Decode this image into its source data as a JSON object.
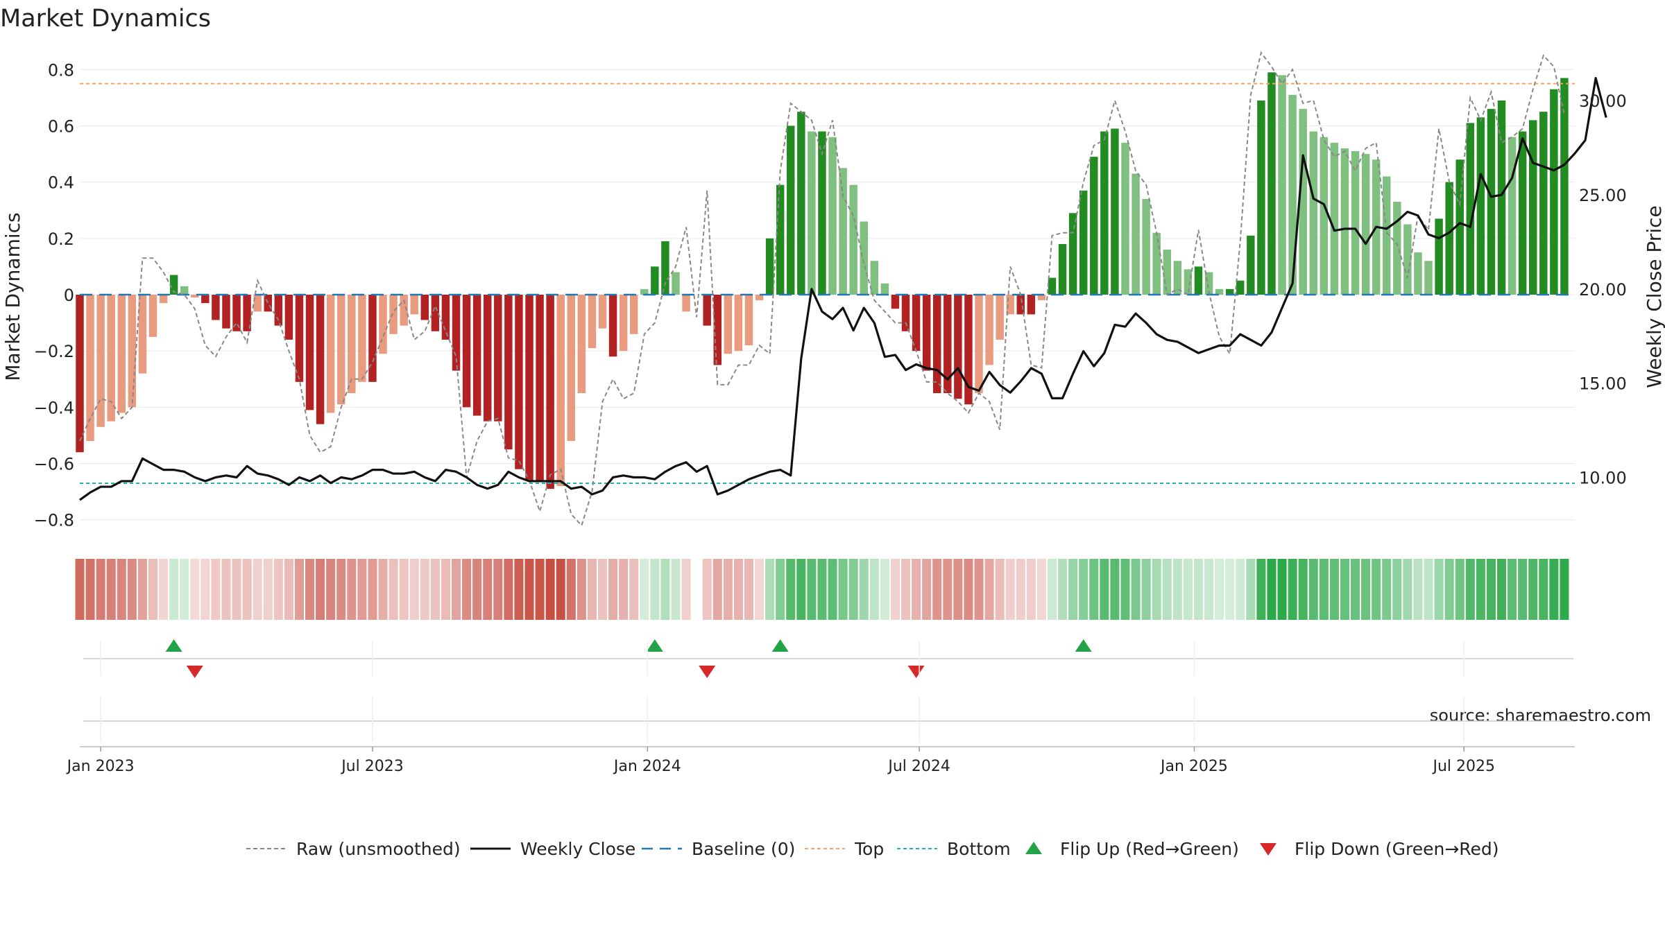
{
  "chart_data": {
    "type": "bar",
    "title": "Market Dynamics",
    "ylabel": "Market Dynamics",
    "y2label": "Weekly Close Price",
    "source": "source: sharemaestro.com",
    "ylim": [
      -0.85,
      0.85
    ],
    "y2lim": [
      7.0,
      32.4
    ],
    "y_ticks": [
      {
        "v": 0.8,
        "label": "0.8"
      },
      {
        "v": 0.6,
        "label": "0.6"
      },
      {
        "v": 0.4,
        "label": "0.4"
      },
      {
        "v": 0.2,
        "label": "0.2"
      },
      {
        "v": 0,
        "label": "0"
      },
      {
        "v": -0.2,
        "label": "−0.2"
      },
      {
        "v": -0.4,
        "label": "−0.4"
      },
      {
        "v": -0.6,
        "label": "−0.6"
      },
      {
        "v": -0.8,
        "label": "−0.8"
      }
    ],
    "y2_ticks": [
      {
        "v": 30,
        "label": "30.00"
      },
      {
        "v": 25,
        "label": "25.00"
      },
      {
        "v": 20,
        "label": "20.00"
      },
      {
        "v": 15,
        "label": "15.00"
      },
      {
        "v": 10,
        "label": "10.00"
      }
    ],
    "x_ticks": [
      {
        "week": 0,
        "label": "Jan 2023"
      },
      {
        "week": 26,
        "label": "Jul 2023"
      },
      {
        "week": 52.3,
        "label": "Jan 2024"
      },
      {
        "week": 78.3,
        "label": "Jul 2024"
      },
      {
        "week": 104.6,
        "label": "Jan 2025"
      },
      {
        "week": 130.4,
        "label": "Jul 2025"
      }
    ],
    "x_range": [
      -2,
      141
    ],
    "top_line": 0.75,
    "bottom_line": -0.67,
    "start_week": -2,
    "series": [
      {
        "name": "Market Dynamics (smoothed)",
        "values": [
          -0.56,
          -0.52,
          -0.47,
          -0.45,
          -0.42,
          -0.4,
          -0.28,
          -0.15,
          -0.03,
          0.07,
          0.03,
          -0.01,
          -0.03,
          -0.09,
          -0.12,
          -0.13,
          -0.13,
          -0.06,
          -0.06,
          -0.11,
          -0.16,
          -0.31,
          -0.41,
          -0.46,
          -0.42,
          -0.39,
          -0.35,
          -0.31,
          -0.31,
          -0.21,
          -0.14,
          -0.11,
          -0.07,
          -0.09,
          -0.13,
          -0.16,
          -0.27,
          -0.4,
          -0.43,
          -0.45,
          -0.45,
          -0.55,
          -0.62,
          -0.66,
          -0.66,
          -0.69,
          -0.68,
          -0.52,
          -0.35,
          -0.19,
          -0.12,
          -0.22,
          -0.2,
          -0.14,
          0.02,
          0.1,
          0.19,
          0.08,
          -0.06,
          null,
          -0.11,
          -0.25,
          -0.21,
          -0.2,
          -0.18,
          -0.02,
          0.2,
          0.39,
          0.6,
          0.65,
          0.58,
          0.58,
          0.56,
          0.45,
          0.39,
          0.26,
          0.12,
          0.04,
          -0.05,
          -0.13,
          -0.2,
          -0.27,
          -0.35,
          -0.35,
          -0.37,
          -0.39,
          -0.35,
          -0.25,
          -0.16,
          -0.07,
          -0.07,
          -0.07,
          -0.02,
          0.06,
          0.18,
          0.29,
          0.37,
          0.49,
          0.58,
          0.59,
          0.54,
          0.43,
          0.34,
          0.22,
          0.16,
          0.12,
          0.09,
          0.1,
          0.08,
          0.02,
          0.02,
          0.05,
          0.21,
          0.69,
          0.79,
          0.78,
          0.71,
          0.66,
          0.58,
          0.56,
          0.54,
          0.52,
          0.51,
          0.5,
          0.48,
          0.42,
          0.33,
          0.25,
          0.15,
          0.12,
          0.27,
          0.4,
          0.48,
          0.61,
          0.63,
          0.66,
          0.69,
          0.56,
          0.58,
          0.62,
          0.65,
          0.73,
          0.77
        ]
      },
      {
        "name": "Raw (unsmoothed)",
        "values": [
          -0.52,
          -0.44,
          -0.37,
          -0.38,
          -0.44,
          -0.4,
          0.13,
          0.13,
          0.08,
          0.01,
          0.0,
          -0.05,
          -0.18,
          -0.22,
          -0.15,
          -0.1,
          -0.17,
          0.05,
          -0.03,
          -0.09,
          -0.2,
          -0.3,
          -0.5,
          -0.56,
          -0.54,
          -0.4,
          -0.3,
          -0.3,
          -0.24,
          -0.15,
          -0.06,
          -0.02,
          -0.16,
          -0.13,
          -0.04,
          -0.13,
          -0.22,
          -0.65,
          -0.52,
          -0.45,
          -0.44,
          -0.58,
          -0.59,
          -0.66,
          -0.77,
          -0.64,
          -0.62,
          -0.78,
          -0.82,
          -0.7,
          -0.38,
          -0.3,
          -0.37,
          -0.35,
          -0.14,
          -0.1,
          0.04,
          0.1,
          0.24,
          -0.08,
          0.37,
          -0.32,
          -0.32,
          -0.25,
          -0.25,
          -0.18,
          -0.21,
          0.44,
          0.68,
          0.65,
          0.62,
          0.5,
          0.62,
          0.35,
          0.28,
          0.11,
          -0.02,
          -0.06,
          -0.1,
          -0.1,
          -0.2,
          -0.31,
          -0.31,
          -0.35,
          -0.38,
          -0.42,
          -0.35,
          -0.38,
          -0.48,
          0.1,
          0.0,
          -0.25,
          -0.26,
          0.21,
          0.22,
          0.22,
          0.4,
          0.53,
          0.55,
          0.69,
          0.58,
          0.44,
          0.39,
          0.22,
          0.0,
          0.02,
          0.0,
          0.23,
          0.01,
          -0.15,
          -0.21,
          0.19,
          0.71,
          0.86,
          0.81,
          0.75,
          0.8,
          0.68,
          0.69,
          0.55,
          0.49,
          0.51,
          0.44,
          0.52,
          0.54,
          0.22,
          0.18,
          0.06,
          0.28,
          0.23,
          0.59,
          0.4,
          0.32,
          0.7,
          0.62,
          0.72,
          0.54,
          0.56,
          0.59,
          0.73,
          0.85,
          0.81,
          0.64
        ]
      },
      {
        "name": "Weekly Close",
        "values": [
          8.8,
          9.2,
          9.5,
          9.5,
          9.8,
          9.8,
          11.0,
          10.7,
          10.4,
          10.4,
          10.3,
          10.0,
          9.8,
          10.0,
          10.1,
          10.0,
          10.6,
          10.2,
          10.1,
          9.9,
          9.6,
          10.0,
          9.8,
          10.1,
          9.7,
          10.0,
          9.9,
          10.1,
          10.4,
          10.4,
          10.2,
          10.2,
          10.3,
          10.0,
          9.8,
          10.4,
          10.3,
          10.0,
          9.6,
          9.4,
          9.6,
          10.3,
          10.0,
          9.8,
          9.8,
          9.8,
          9.8,
          9.4,
          9.5,
          9.1,
          9.3,
          10.0,
          10.1,
          10.0,
          10.0,
          9.9,
          10.3,
          10.6,
          10.8,
          10.3,
          10.6,
          9.1,
          9.3,
          9.6,
          9.9,
          10.1,
          10.3,
          10.4,
          10.1,
          16.3,
          20.0,
          18.8,
          18.4,
          19.0,
          17.8,
          19.0,
          18.2,
          16.4,
          16.5,
          15.7,
          16.0,
          15.8,
          15.7,
          15.2,
          15.8,
          14.8,
          14.6,
          15.6,
          14.9,
          14.5,
          15.1,
          15.8,
          15.5,
          14.2,
          14.2,
          15.5,
          16.7,
          15.9,
          16.6,
          18.1,
          18.0,
          18.7,
          18.2,
          17.6,
          17.3,
          17.2,
          16.9,
          16.6,
          16.8,
          17.0,
          17.0,
          17.6,
          17.3,
          17.0,
          17.7,
          19.0,
          20.3,
          27.1,
          24.8,
          24.5,
          23.1,
          23.2,
          23.2,
          22.4,
          23.3,
          23.2,
          23.6,
          24.1,
          23.9,
          22.9,
          22.7,
          23.0,
          23.5,
          23.3,
          26.1,
          24.9,
          25.0,
          25.9,
          28.0,
          26.7,
          26.5,
          26.3,
          26.6,
          27.2,
          27.9,
          31.2,
          29.1
        ]
      }
    ],
    "shade": [
      0.56,
      0.52,
      0.47,
      0.45,
      0.42,
      0.4,
      0.28,
      0.15,
      0.03,
      0.07,
      0.03,
      0.01,
      0.03,
      0.09,
      0.12,
      0.13,
      0.13,
      0.06,
      0.06,
      0.11,
      0.16,
      0.31,
      0.41,
      0.46,
      0.42,
      0.39,
      0.35,
      0.31,
      0.31,
      0.21,
      0.14,
      0.11,
      0.07,
      0.09,
      0.13,
      0.16,
      0.27,
      0.4,
      0.43,
      0.45,
      0.45,
      0.55,
      0.62,
      0.66,
      0.66,
      0.69,
      0.68,
      0.52,
      0.35,
      0.19,
      0.12,
      0.22,
      0.2,
      0.14,
      0.02,
      0.1,
      0.19,
      0.08,
      0.06,
      0.02,
      0.11,
      0.25,
      0.21,
      0.2,
      0.18,
      0.02,
      0.2,
      0.39,
      0.6,
      0.65,
      0.58,
      0.58,
      0.56,
      0.45,
      0.39,
      0.26,
      0.12,
      0.04,
      0.05,
      0.13,
      0.2,
      0.27,
      0.35,
      0.35,
      0.37,
      0.39,
      0.35,
      0.25,
      0.16,
      0.07,
      0.07,
      0.07,
      0.02,
      0.06,
      0.18,
      0.29,
      0.37,
      0.49,
      0.58,
      0.59,
      0.54,
      0.43,
      0.34,
      0.22,
      0.16,
      0.12,
      0.09,
      0.1,
      0.08,
      0.02,
      0.02,
      0.05,
      0.21,
      0.69,
      0.79,
      0.78,
      0.71,
      0.66,
      0.58,
      0.56,
      0.54,
      0.52,
      0.51,
      0.5,
      0.48,
      0.42,
      0.33,
      0.25,
      0.15,
      0.12,
      0.27,
      0.4,
      0.48,
      0.61,
      0.63,
      0.66,
      0.69,
      0.56,
      0.58,
      0.62,
      0.65,
      0.73,
      0.77
    ],
    "flips_up": [
      7,
      53,
      65,
      94
    ],
    "flips_down": [
      9,
      58,
      78
    ],
    "legend": [
      {
        "label": "Raw (unsmoothed)",
        "kind": "dashed-gray"
      },
      {
        "label": "Weekly Close",
        "kind": "solid-black"
      },
      {
        "label": "Baseline (0)",
        "kind": "dashed-blue"
      },
      {
        "label": "Top",
        "kind": "dotted-orange"
      },
      {
        "label": "Bottom",
        "kind": "dotted-teal"
      },
      {
        "label": "Flip Up (Red→Green)",
        "kind": "tri-up"
      },
      {
        "label": "Flip Down (Green→Red)",
        "kind": "tri-down"
      }
    ],
    "colors": {
      "strong_green": "#228b22",
      "light_green": "#7fbf7f",
      "strong_red": "#b22222",
      "light_red": "#e89b7f",
      "raw": "#888888",
      "close": "#111111",
      "baseline": "#1f77b4",
      "top": "#f4a460",
      "bottom": "#20b2aa",
      "flip_up": "#22a34a",
      "flip_down": "#d62828"
    }
  }
}
